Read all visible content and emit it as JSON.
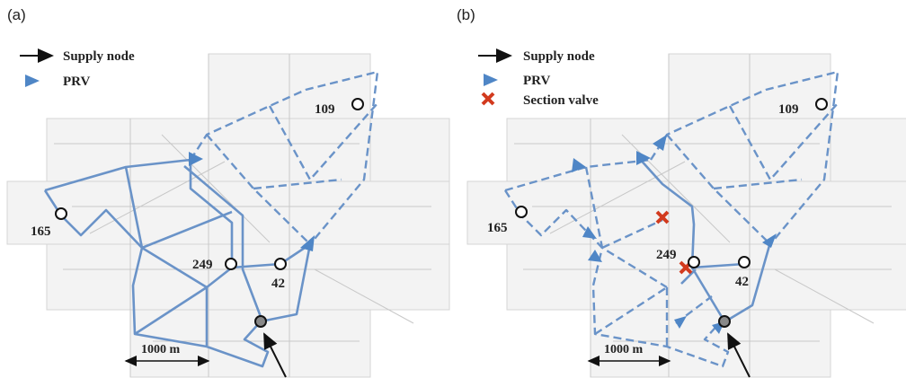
{
  "panels": [
    {
      "label": "(a)",
      "legend": [
        "Supply node",
        "PRV"
      ],
      "nodes": [
        "109",
        "165",
        "249",
        "42"
      ],
      "scale": "1000 m"
    },
    {
      "label": "(b)",
      "legend": [
        "Supply node",
        "PRV",
        "Section valve"
      ],
      "nodes": [
        "109",
        "165",
        "249",
        "42"
      ],
      "scale": "1000 m"
    }
  ]
}
